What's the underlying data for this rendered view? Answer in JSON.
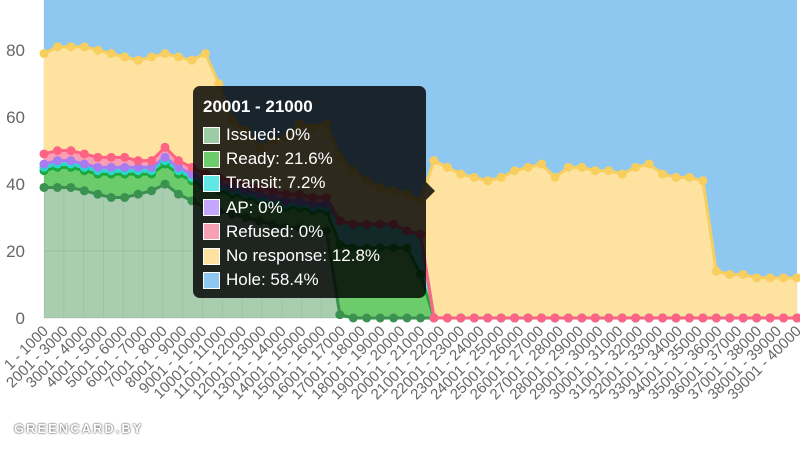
{
  "chart_data": {
    "type": "area",
    "stacked": true,
    "y_axis": {
      "ylim": [
        0,
        95
      ],
      "ticks": [
        0,
        20,
        40,
        60,
        80
      ]
    },
    "x_labels_visible": [
      "1 - 1000",
      "2001 - 3000",
      "3001 - 4000",
      "4001 - 5000",
      "5001 - 6000",
      "6001 - 7000",
      "7001 - 8000",
      "8001 - 9000",
      "9001 - 10000",
      "10001 - 11000",
      "11001 - 12000",
      "12001 - 13000",
      "13001 - 14000",
      "14001 - 15000",
      "15001 - 16000",
      "16001 - 17000",
      "17001 - 18000",
      "18001 - 19000",
      "19001 - 20000",
      "20001 - 21000",
      "21001 - 22000",
      "22001 - 23000",
      "23001 - 24000",
      "24001 - 25000",
      "25001 - 26000",
      "26001 - 27000",
      "27001 - 28000",
      "28001 - 29000",
      "29001 - 30000",
      "30001 - 31000",
      "31001 - 32000",
      "32001 - 33000",
      "33001 - 34000",
      "34001 - 35000",
      "35001 - 36000",
      "36001 - 37000",
      "37001 - 38000",
      "38001 - 39000",
      "39001 - 40000"
    ],
    "series": [
      {
        "name": "Issued",
        "fill": "rgba(61,145,78,0.45)",
        "stroke": "#3a9150",
        "values": [
          39,
          39,
          39,
          38,
          37,
          36,
          36,
          37,
          38,
          40,
          37,
          35,
          33,
          32,
          31,
          30,
          29,
          28,
          27,
          27,
          26,
          26,
          1,
          0,
          0,
          0,
          0,
          0,
          0,
          0,
          0,
          0,
          0,
          0,
          0,
          0,
          0,
          0,
          0,
          0,
          0,
          0,
          0,
          0,
          0,
          0,
          0,
          0,
          0,
          0,
          0,
          0,
          0,
          0,
          0,
          0,
          0
        ]
      },
      {
        "name": "Ready",
        "fill": "#6ccc6c",
        "stroke": "#1fa83a",
        "values": [
          5,
          6,
          6,
          6,
          6,
          7,
          7,
          6,
          5,
          6,
          6,
          6,
          6,
          6,
          6,
          6,
          6,
          6,
          6,
          6,
          6,
          6,
          21,
          21,
          21,
          21,
          21,
          21,
          13,
          0,
          0,
          0,
          0,
          0,
          0,
          0,
          0,
          0,
          0,
          0,
          0,
          0,
          0,
          0,
          0,
          0,
          0,
          0,
          0,
          0,
          0,
          0,
          0,
          0,
          0,
          0,
          0
        ]
      },
      {
        "name": "Transit",
        "fill": "#60e8e4",
        "stroke": "#2ad6d0",
        "values": [
          1,
          1,
          1,
          1,
          1,
          1,
          1,
          1,
          1,
          1,
          1,
          1,
          1,
          1,
          1,
          1,
          1,
          1,
          1,
          1,
          1,
          1,
          7,
          7,
          7,
          7,
          7,
          5,
          12,
          0,
          0,
          0,
          0,
          0,
          0,
          0,
          0,
          0,
          0,
          0,
          0,
          0,
          0,
          0,
          0,
          0,
          0,
          0,
          0,
          0,
          0,
          0,
          0,
          0,
          0,
          0,
          0
        ]
      },
      {
        "name": "AP",
        "fill": "#c4a6ff",
        "stroke": "#a87cf0",
        "values": [
          1,
          1,
          1,
          1,
          1,
          1,
          1,
          1,
          1,
          1,
          1,
          1,
          1,
          1,
          1,
          1,
          1,
          1,
          1,
          1,
          1,
          1,
          0,
          0,
          0,
          0,
          0,
          0,
          0,
          0,
          0,
          0,
          0,
          0,
          0,
          0,
          0,
          0,
          0,
          0,
          0,
          0,
          0,
          0,
          0,
          0,
          0,
          0,
          0,
          0,
          0,
          0,
          0,
          0,
          0,
          0,
          0
        ]
      },
      {
        "name": "Refused",
        "fill": "#f7a0b4",
        "stroke": "#ff6384",
        "values": [
          3,
          3,
          3,
          3,
          3,
          3,
          3,
          2,
          2,
          3,
          2,
          2,
          2,
          2,
          2,
          2,
          2,
          2,
          2,
          2,
          2,
          2,
          0,
          0,
          0,
          0,
          0,
          0,
          0,
          0,
          0,
          0,
          0,
          0,
          0,
          0,
          0,
          0,
          0,
          0,
          0,
          0,
          0,
          0,
          0,
          0,
          0,
          0,
          0,
          0,
          0,
          0,
          0,
          0,
          0,
          0,
          0
        ]
      },
      {
        "name": "No response",
        "fill": "#fde2a0",
        "stroke": "#f8cf5e",
        "values": [
          30,
          31,
          31,
          32,
          32,
          31,
          30,
          30,
          31,
          28,
          31,
          32,
          36,
          28,
          18,
          16,
          12,
          15,
          17,
          21,
          21,
          22,
          19,
          16,
          13,
          11,
          10,
          11,
          10,
          47,
          45,
          43,
          42,
          41,
          42,
          44,
          45,
          46,
          42,
          45,
          45,
          44,
          44,
          43,
          45,
          46,
          43,
          42,
          42,
          41,
          14,
          13,
          13,
          12,
          12,
          12,
          12
        ]
      },
      {
        "name": "Hole",
        "fill": "#8ec8f0",
        "stroke": "#6aacea",
        "values": [
          21,
          19,
          19,
          19,
          20,
          21,
          22,
          23,
          22,
          21,
          22,
          23,
          21,
          30,
          41,
          44,
          49,
          47,
          47,
          43,
          43,
          42,
          53,
          56,
          59,
          58,
          58,
          58,
          65,
          53,
          55,
          57,
          58,
          59,
          58,
          56,
          55,
          54,
          58,
          55,
          55,
          56,
          56,
          57,
          55,
          54,
          57,
          58,
          58,
          59,
          86,
          87,
          87,
          88,
          88,
          88,
          88
        ]
      }
    ]
  },
  "tooltip": {
    "title": "20001 - 21000",
    "items": [
      {
        "label": "Issued: 0%",
        "color": "#9ccca5"
      },
      {
        "label": "Ready: 21.6%",
        "color": "#6ccc6c"
      },
      {
        "label": "Transit: 7.2%",
        "color": "#60e8e4"
      },
      {
        "label": "AP: 0%",
        "color": "#c4a6ff"
      },
      {
        "label": "Refused: 0%",
        "color": "#f7a0b4"
      },
      {
        "label": "No response: 12.8%",
        "color": "#fde2a0"
      },
      {
        "label": "Hole: 58.4%",
        "color": "#8ec8f0"
      }
    ]
  },
  "watermark": "GREENCARD.BY"
}
